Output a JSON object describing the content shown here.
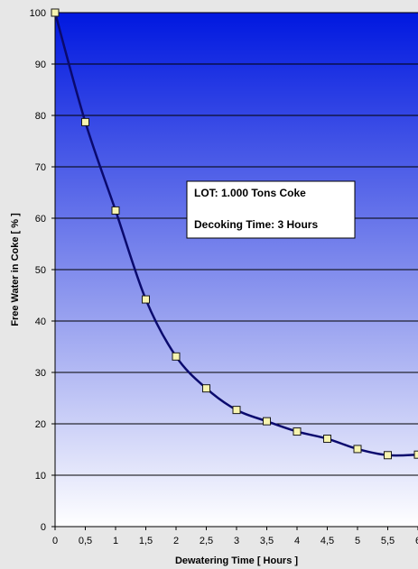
{
  "chart_data": {
    "type": "line",
    "title": "",
    "xlabel": "Dewatering Time [ Hours ]",
    "ylabel": "Free Water in Coke [ % ]",
    "x": [
      0,
      0.5,
      1,
      1.5,
      2,
      2.5,
      3,
      3.5,
      4,
      4.5,
      5,
      5.5,
      6
    ],
    "series": [
      {
        "values": [
          100,
          78.7,
          61.5,
          44.2,
          33.1,
          26.9,
          22.7,
          20.5,
          18.5,
          17.1,
          15.1,
          13.9,
          14.0
        ]
      }
    ],
    "xlim": [
      0,
      6
    ],
    "ylim": [
      0,
      100
    ],
    "x_ticks": [
      "0",
      "0,5",
      "1",
      "1,5",
      "2",
      "2,5",
      "3",
      "3,5",
      "4",
      "4,5",
      "5",
      "5,5",
      "6"
    ],
    "y_ticks": [
      "0",
      "10",
      "20",
      "30",
      "40",
      "50",
      "60",
      "70",
      "80",
      "90",
      "100"
    ],
    "grid": true,
    "smooth": true,
    "colors": {
      "line": "#0a0a6e",
      "marker_fill": "#f7f4b0",
      "marker_edge": "#1a1a1a",
      "gradient_top": "#0018e0",
      "gradient_bottom": "#ffffff",
      "page_background": "#e7e7e7"
    },
    "annotation": {
      "line1": "LOT: 1.000 Tons Coke",
      "line2": "Decoking Time: 3 Hours"
    }
  }
}
